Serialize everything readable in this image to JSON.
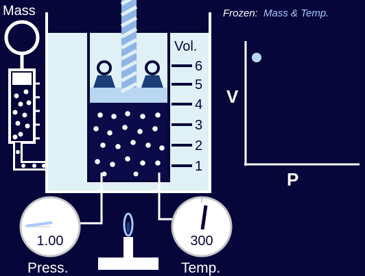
{
  "header": {
    "frozen_prefix": "Frozen:",
    "frozen_vars": "Mass & Temp."
  },
  "labels": {
    "mass": "Mass",
    "volume_scale_title": "Vol.",
    "pressure_gauge": "Press.",
    "temperature_gauge": "Temp."
  },
  "volume_scale": {
    "ticks": [
      "6",
      "5",
      "4",
      "3",
      "2",
      "1"
    ]
  },
  "gauges": {
    "pressure_value": "1.00",
    "temperature_value": "300"
  },
  "plot": {
    "y_label": "V",
    "x_label": "P"
  },
  "colors": {
    "background": "#06063a",
    "accent_text": "#a9c8ff",
    "glass": "#dff0f6",
    "gas": "#0b0b4a",
    "piston": "#b9d6f0",
    "weight": "#1c3f7a",
    "data_point": "#b9d6f0"
  }
}
